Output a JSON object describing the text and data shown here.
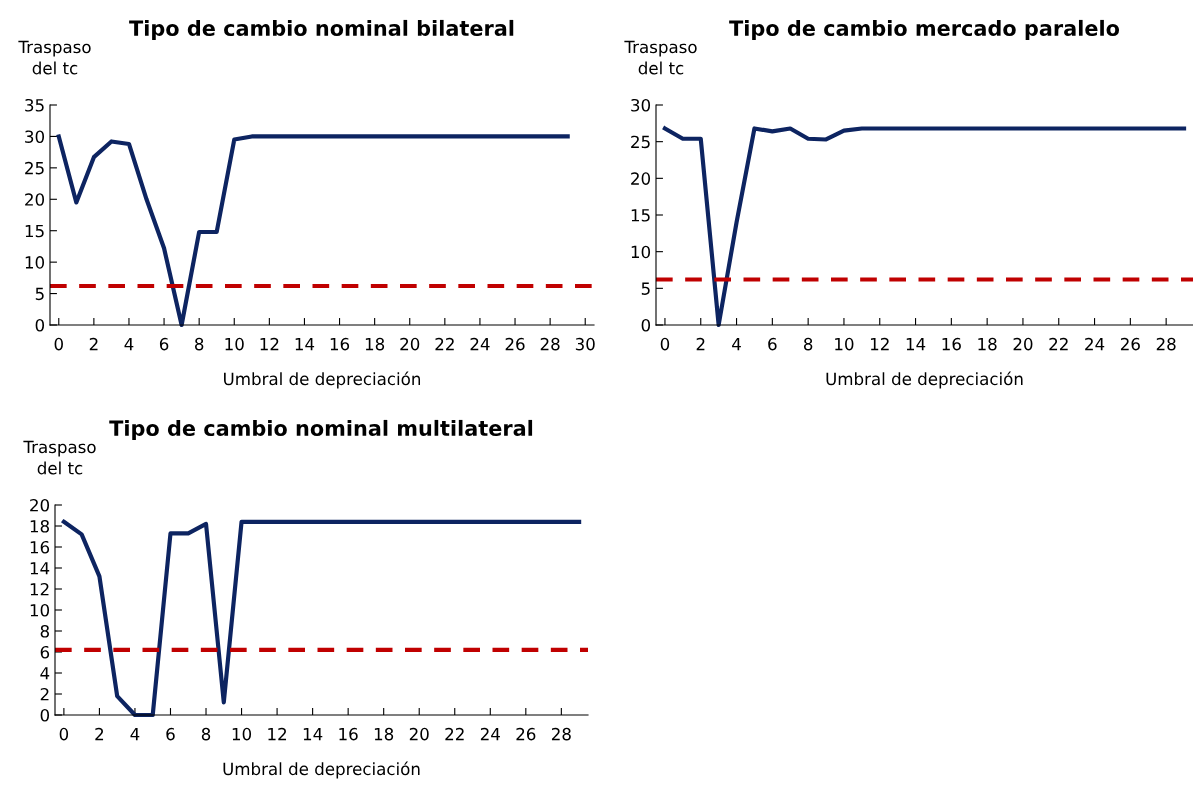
{
  "chart_data": [
    {
      "type": "line",
      "title": "Tipo de cambio nominal bilateral",
      "ylabel": "Traspaso\ndel tc",
      "xlabel": "Umbral de depreciación",
      "x": [
        0,
        1,
        2,
        3,
        4,
        5,
        6,
        7,
        8,
        9,
        10,
        11,
        12,
        13,
        14,
        15,
        16,
        17,
        18,
        19,
        20,
        21,
        22,
        23,
        24,
        25,
        26,
        27,
        28,
        29
      ],
      "series": [
        {
          "color": "#0d2461",
          "values": [
            30,
            19.5,
            26.7,
            29.2,
            28.8,
            20,
            12.2,
            0,
            14.8,
            14.8,
            29.5,
            30,
            30,
            30,
            30,
            30,
            30,
            30,
            30,
            30,
            30,
            30,
            30,
            30,
            30,
            30,
            30,
            30,
            30,
            30
          ]
        }
      ],
      "ref_lines": [
        {
          "axis": "y",
          "value": 6.2,
          "color": "#c00000",
          "line_style": "dashed"
        }
      ],
      "xlim": [
        -0.5,
        30.5
      ],
      "xticks": [
        0,
        2,
        4,
        6,
        8,
        10,
        12,
        14,
        16,
        18,
        20,
        22,
        24,
        26,
        28,
        30
      ],
      "ylim": [
        0,
        35
      ],
      "yticks": [
        0,
        5,
        10,
        15,
        20,
        25,
        30,
        35
      ],
      "grid": false,
      "legend": false,
      "line_style": "solid",
      "marker": "none"
    },
    {
      "type": "line",
      "title": "Tipo de cambio mercado paralelo",
      "ylabel": "Traspaso\ndel tc",
      "xlabel": "Umbral de depreciación",
      "x": [
        0,
        1,
        2,
        3,
        4,
        5,
        6,
        7,
        8,
        9,
        10,
        11,
        12,
        13,
        14,
        15,
        16,
        17,
        18,
        19,
        20,
        21,
        22,
        23,
        24,
        25,
        26,
        27,
        28,
        29
      ],
      "series": [
        {
          "color": "#0d2461",
          "values": [
            26.8,
            25.4,
            25.4,
            0,
            14,
            26.8,
            26.4,
            26.8,
            25.4,
            25.3,
            26.5,
            26.8,
            26.8,
            26.8,
            26.8,
            26.8,
            26.8,
            26.8,
            26.8,
            26.8,
            26.8,
            26.8,
            26.8,
            26.8,
            26.8,
            26.8,
            26.8,
            26.8,
            26.8,
            26.8
          ]
        }
      ],
      "ref_lines": [
        {
          "axis": "y",
          "value": 6.2,
          "color": "#c00000",
          "line_style": "dashed"
        }
      ],
      "xlim": [
        -0.5,
        29.5
      ],
      "xticks": [
        0,
        2,
        4,
        6,
        8,
        10,
        12,
        14,
        16,
        18,
        20,
        22,
        24,
        26,
        28
      ],
      "ylim": [
        0,
        30
      ],
      "yticks": [
        0,
        5,
        10,
        15,
        20,
        25,
        30
      ],
      "grid": false,
      "legend": false,
      "line_style": "solid",
      "marker": "none"
    },
    {
      "type": "line",
      "title": "Tipo de cambio nominal multilateral",
      "ylabel": "Traspaso\ndel tc",
      "xlabel": "Umbral de depreciación",
      "x": [
        0,
        1,
        2,
        3,
        4,
        5,
        6,
        7,
        8,
        9,
        10,
        11,
        12,
        13,
        14,
        15,
        16,
        17,
        18,
        19,
        20,
        21,
        22,
        23,
        24,
        25,
        26,
        27,
        28,
        29
      ],
      "series": [
        {
          "color": "#0d2461",
          "values": [
            18.4,
            17.2,
            13.2,
            1.8,
            0,
            0,
            17.3,
            17.3,
            18.2,
            1.2,
            18.4,
            18.4,
            18.4,
            18.4,
            18.4,
            18.4,
            18.4,
            18.4,
            18.4,
            18.4,
            18.4,
            18.4,
            18.4,
            18.4,
            18.4,
            18.4,
            18.4,
            18.4,
            18.4,
            18.4
          ]
        }
      ],
      "ref_lines": [
        {
          "axis": "y",
          "value": 6.2,
          "color": "#c00000",
          "line_style": "dashed"
        }
      ],
      "xlim": [
        -0.5,
        29.5
      ],
      "xticks": [
        0,
        2,
        4,
        6,
        8,
        10,
        12,
        14,
        16,
        18,
        20,
        22,
        24,
        26,
        28
      ],
      "ylim": [
        0,
        20
      ],
      "yticks": [
        0,
        2,
        4,
        6,
        8,
        10,
        12,
        14,
        16,
        18,
        20
      ],
      "grid": false,
      "legend": false,
      "line_style": "solid",
      "marker": "none"
    }
  ]
}
